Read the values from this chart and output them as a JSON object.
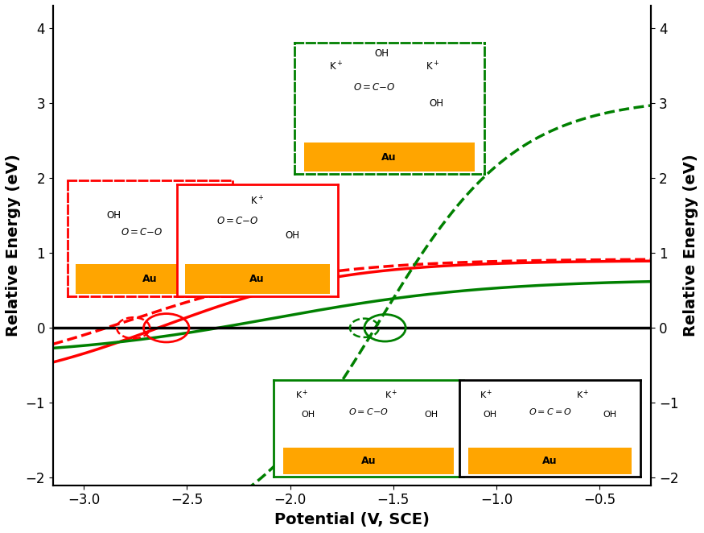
{
  "xlim": [
    -3.15,
    -0.25
  ],
  "ylim": [
    -2.1,
    4.3
  ],
  "xlabel": "Potential (V, SCE)",
  "ylabel": "Relative Energy (eV)",
  "xticks": [
    -3.0,
    -2.5,
    -2.0,
    -1.5,
    -1.0,
    -0.5
  ],
  "yticks": [
    -2,
    -1,
    0,
    1,
    2,
    3,
    4
  ],
  "background_color": "#ffffff",
  "red_color": "#FF0000",
  "green_color": "#008000",
  "au_color": "#FFA500",
  "curve_lw": 2.5,
  "hline_lw": 2.5
}
